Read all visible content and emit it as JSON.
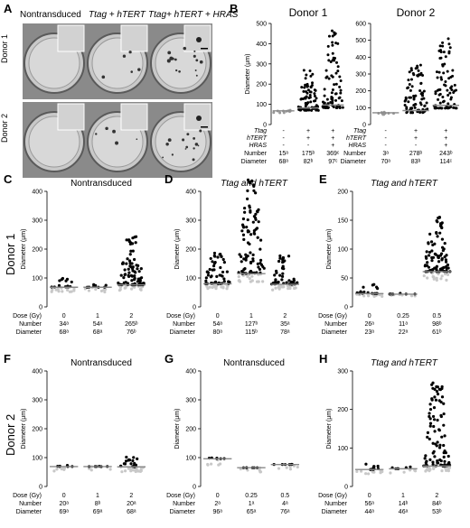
{
  "panel_letters": [
    "A",
    "B",
    "C",
    "D",
    "E",
    "F",
    "G",
    "H"
  ],
  "panelA": {
    "columns": [
      "Nontransduced",
      "Ttag + hTERT",
      "Ttag+ hTERT + HRAS"
    ],
    "rows": [
      "Donor 1",
      "Donor 2"
    ]
  },
  "panelB": {
    "titles": [
      "Donor 1",
      "Donor 2"
    ],
    "ylabel": "Diameter (μm)",
    "row_labels": [
      "Ttag",
      "hTERT",
      "HRAS",
      "Number",
      "Diameter"
    ],
    "donor1": {
      "flags": [
        [
          "-",
          "-",
          "-"
        ],
        [
          "+",
          "+",
          "-"
        ],
        [
          "+",
          "+",
          "+"
        ]
      ],
      "number": [
        "15ᵃ",
        "175ᵇ",
        "369ᶜ"
      ],
      "diameter": [
        "68ᵃ",
        "82ᵇ",
        "97ᶜ"
      ]
    },
    "donor2": {
      "flags": [
        [
          "-",
          "-",
          "-"
        ],
        [
          "+",
          "+",
          "-"
        ],
        [
          "+",
          "+",
          "+"
        ]
      ],
      "number": [
        "3ᵃ",
        "278ᵇ",
        "243ᵇ"
      ],
      "diameter": [
        "70ᵃ",
        "83ᵇ",
        "114ᶜ"
      ]
    }
  },
  "donor_side_labels": [
    "Donor 1",
    "Donor 2"
  ],
  "ylabel": "Diameter (μm)",
  "table_row_labels": [
    "Dose (Gy)",
    "Number",
    "Diameter"
  ],
  "chart_data": [
    {
      "panel": "B-Donor 1",
      "type": "scatter",
      "title": "Donor 1",
      "ylabel": "Diameter (μm)",
      "ylim": [
        0,
        500
      ],
      "yticks": [
        0,
        100,
        200,
        300,
        400,
        500
      ],
      "categories": [
        "-",
        "+ +",
        "+ + +"
      ],
      "medians": [
        68,
        82,
        97
      ],
      "maxima": [
        80,
        280,
        470
      ]
    },
    {
      "panel": "B-Donor 2",
      "type": "scatter",
      "title": "Donor 2",
      "ylabel": "Diameter (μm)",
      "ylim": [
        0,
        600
      ],
      "yticks": [
        0,
        100,
        200,
        300,
        400,
        500,
        600
      ],
      "categories": [
        "-",
        "+ +",
        "+ + +"
      ],
      "medians": [
        70,
        83,
        114
      ],
      "maxima": [
        75,
        360,
        540
      ]
    },
    {
      "panel": "C",
      "type": "scatter",
      "title": "Nontransduced",
      "ylabel": "Diameter (μm)",
      "ylim": [
        0,
        400
      ],
      "yticks": [
        0,
        100,
        200,
        300,
        400
      ],
      "categories": [
        "0",
        "1",
        "2"
      ],
      "number": [
        "34ᵃ",
        "54ᵃ",
        "265ᵇ"
      ],
      "diameter": [
        "68ᵃ",
        "68ᵃ",
        "76ᵇ"
      ],
      "medians": [
        68,
        68,
        76
      ],
      "maxima": [
        100,
        85,
        255
      ]
    },
    {
      "panel": "D",
      "type": "scatter",
      "title": "Ttag and hTERT",
      "ylabel": "Diameter (μm)",
      "ylim": [
        0,
        400
      ],
      "yticks": [
        0,
        100,
        200,
        300,
        400
      ],
      "categories": [
        "0",
        "1",
        "2"
      ],
      "number": [
        "54ᵃ",
        "127ᵇ",
        "35ᵃ"
      ],
      "diameter": [
        "80ᵃ",
        "115ᵇ",
        "78ᵃ"
      ],
      "medians": [
        80,
        115,
        78
      ],
      "maxima": [
        195,
        440,
        180
      ]
    },
    {
      "panel": "E",
      "type": "scatter",
      "title": "Ttag and hTERT",
      "ylabel": "Diameter (μm)",
      "ylim": [
        0,
        200
      ],
      "yticks": [
        0,
        50,
        100,
        150,
        200
      ],
      "categories": [
        "0",
        "0.25",
        "0.5"
      ],
      "number": [
        "26ᵃ",
        "11ᵃ",
        "98ᵇ"
      ],
      "diameter": [
        "23ᵃ",
        "22ᵃ",
        "61ᵇ"
      ],
      "medians": [
        23,
        22,
        61
      ],
      "maxima": [
        40,
        25,
        160
      ]
    },
    {
      "panel": "F",
      "type": "scatter",
      "title": "Nontransduced",
      "ylabel": "Diameter (μm)",
      "ylim": [
        0,
        400
      ],
      "yticks": [
        0,
        100,
        200,
        300,
        400
      ],
      "categories": [
        "0",
        "1",
        "2"
      ],
      "number": [
        "20ᵃ",
        "8ᵇ",
        "20ᵃ"
      ],
      "diameter": [
        "69ᵃ",
        "69ᵃ",
        "68ᵃ"
      ],
      "medians": [
        69,
        69,
        68
      ],
      "maxima": [
        75,
        70,
        110
      ]
    },
    {
      "panel": "G",
      "type": "scatter",
      "title": "Nontransduced",
      "ylabel": "Diameter (μm)",
      "ylim": [
        0,
        400
      ],
      "yticks": [
        0,
        100,
        200,
        300,
        400
      ],
      "categories": [
        "0",
        "0.25",
        "0.5"
      ],
      "number": [
        "2ᵃ",
        "1ᵃ",
        "4ᵃ"
      ],
      "diameter": [
        "96ᵃ",
        "65ᵃ",
        "76ᵃ"
      ],
      "medians": [
        96,
        65,
        76
      ],
      "maxima": [
        100,
        65,
        80
      ]
    },
    {
      "panel": "H",
      "type": "scatter",
      "title": "Ttag and hTERT",
      "ylabel": "Diameter (μm)",
      "ylim": [
        0,
        300
      ],
      "yticks": [
        0,
        100,
        200,
        300
      ],
      "categories": [
        "0",
        "1",
        "2"
      ],
      "number": [
        "56ᵃ",
        "14ᵇ",
        "84ᵇ"
      ],
      "diameter": [
        "44ᵃ",
        "46ᵃ",
        "53ᵇ"
      ],
      "medians": [
        44,
        46,
        53
      ],
      "maxima": [
        60,
        55,
        275
      ]
    }
  ]
}
